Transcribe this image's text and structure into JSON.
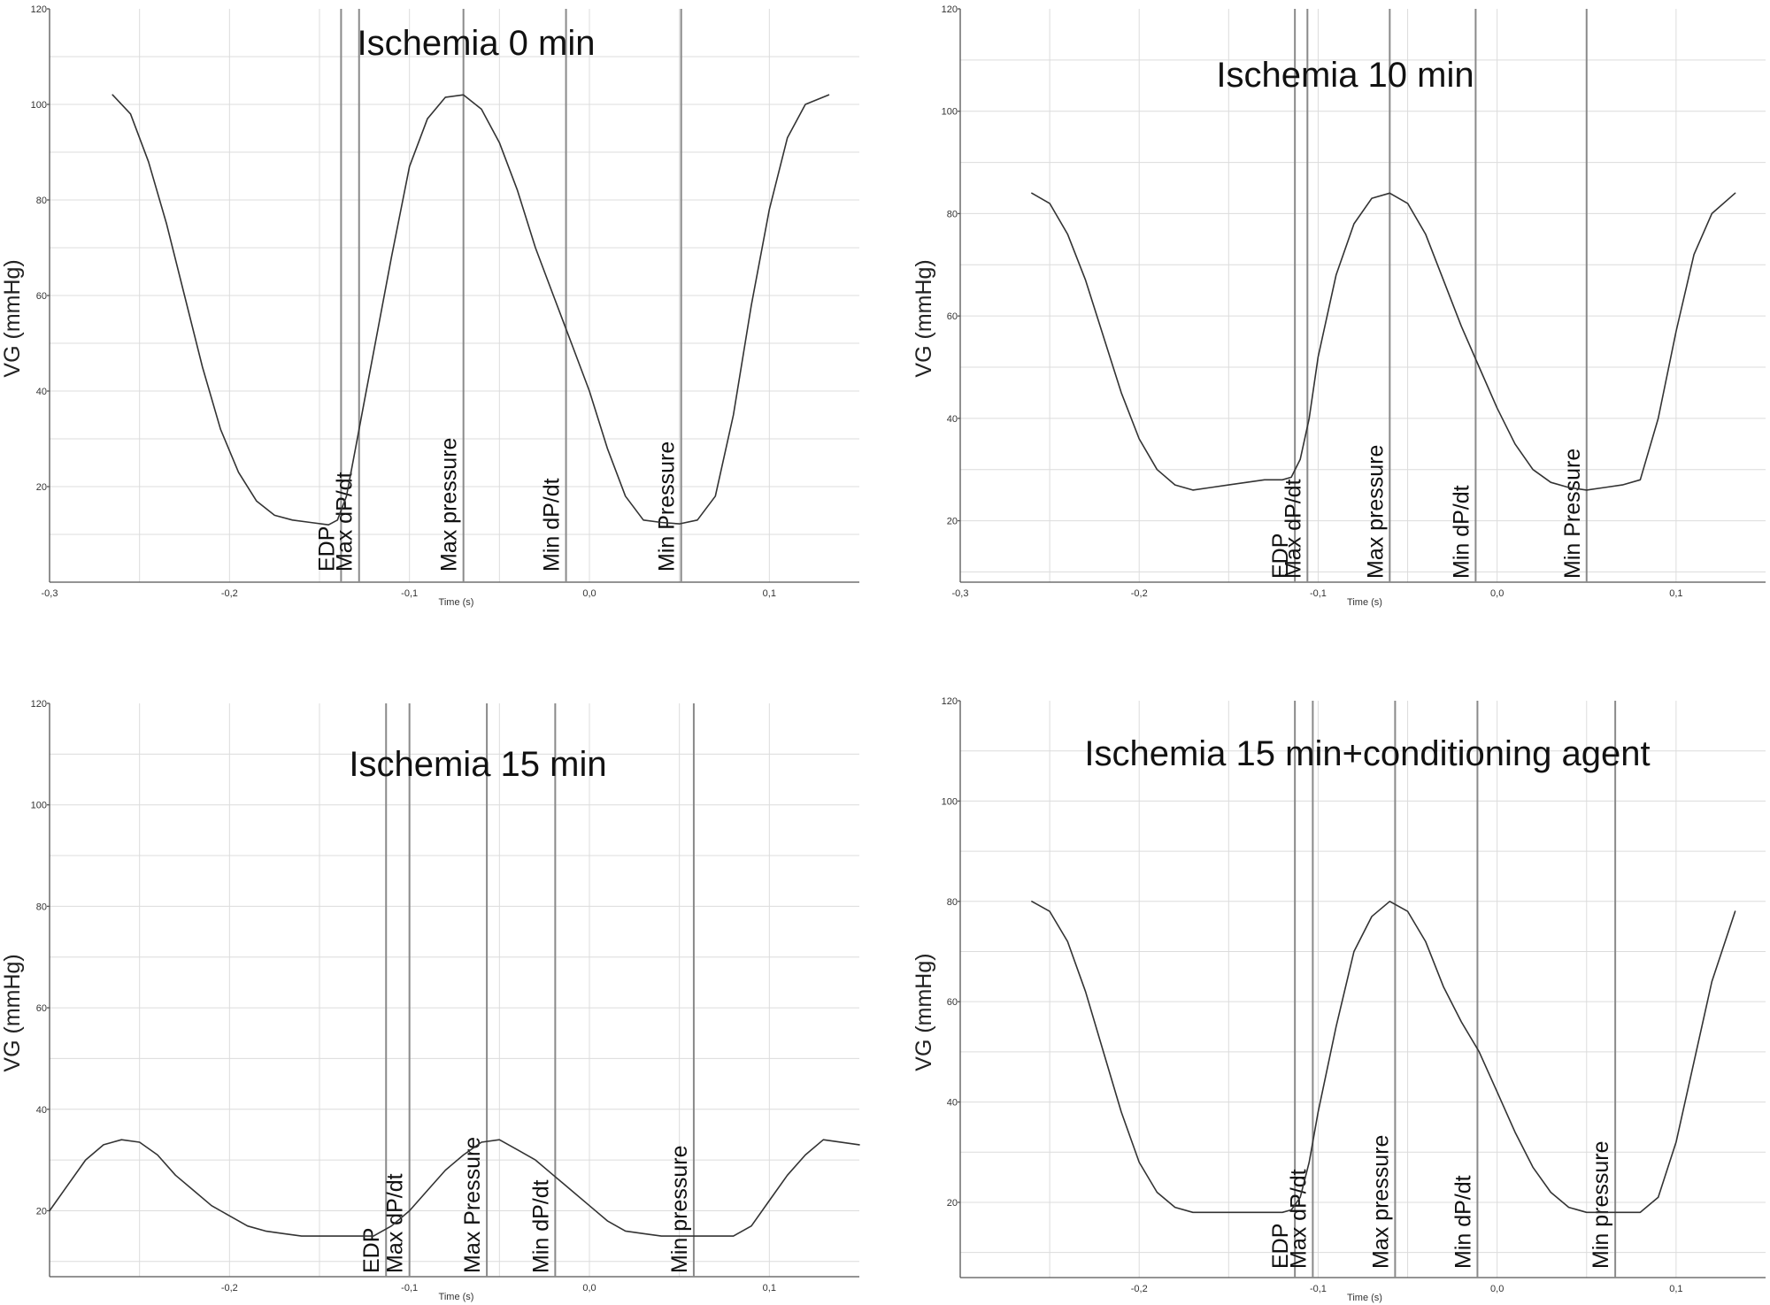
{
  "chart_data": [
    {
      "type": "line",
      "title": "Ischemia 0 min",
      "xlabel": "Time (s)",
      "ylabel": "VG (mmHg)",
      "xlim": [
        -0.3,
        0.15
      ],
      "ylim": [
        0,
        120
      ],
      "xticks": [
        -0.3,
        -0.2,
        -0.1,
        0.0,
        0.1
      ],
      "xtick_labels": [
        "-0,3",
        "-0,2",
        "-0,1",
        "0,0",
        "0,1"
      ],
      "yticks": [
        20,
        40,
        60,
        80,
        100,
        120
      ],
      "ytick_labels": [
        "20",
        "40",
        "60",
        "80",
        "100",
        "120"
      ],
      "grid": true,
      "series": [
        {
          "x": [
            -0.265,
            -0.255,
            -0.245,
            -0.235,
            -0.225,
            -0.215,
            -0.205,
            -0.195,
            -0.185,
            -0.175,
            -0.165,
            -0.155,
            -0.145,
            -0.14,
            -0.135,
            -0.13,
            -0.125,
            -0.12,
            -0.11,
            -0.1,
            -0.09,
            -0.08,
            -0.07,
            -0.06,
            -0.05,
            -0.04,
            -0.03,
            -0.02,
            -0.01,
            0.0,
            0.01,
            0.02,
            0.03,
            0.04,
            0.05,
            0.06,
            0.07,
            0.08,
            0.09,
            0.1,
            0.11,
            0.12,
            0.133
          ],
          "y": [
            102,
            98,
            88,
            75,
            60,
            45,
            32,
            23,
            17,
            14,
            13,
            12.5,
            12,
            13,
            18,
            28,
            38,
            48,
            68,
            87,
            97,
            101.5,
            102,
            99,
            92,
            82,
            70,
            60,
            50,
            40,
            28,
            18,
            13,
            12.5,
            12.2,
            13,
            18,
            35,
            58,
            78,
            93,
            100,
            102
          ]
        }
      ],
      "markers": [
        {
          "x": -0.138,
          "label": "EDP"
        },
        {
          "x": -0.128,
          "label": "Max dP/dt"
        },
        {
          "x": -0.07,
          "label": "Max pressure"
        },
        {
          "x": -0.013,
          "label": "Min dP/dt"
        },
        {
          "x": 0.051,
          "label": "Min Pressure"
        }
      ]
    },
    {
      "type": "line",
      "title": "Ischemia 10 min",
      "xlabel": "Time (s)",
      "ylabel": "VG (mmHg)",
      "xlim": [
        -0.3,
        0.15
      ],
      "ylim": [
        8,
        120
      ],
      "xticks": [
        -0.3,
        -0.2,
        -0.1,
        0.0,
        0.1
      ],
      "xtick_labels": [
        "-0,3",
        "-0,2",
        "-0,1",
        "0,0",
        "0,1"
      ],
      "yticks": [
        20,
        40,
        60,
        80,
        100,
        120
      ],
      "ytick_labels": [
        "20",
        "40",
        "60",
        "80",
        "100",
        "120"
      ],
      "grid": true,
      "series": [
        {
          "x": [
            -0.26,
            -0.25,
            -0.24,
            -0.23,
            -0.22,
            -0.21,
            -0.2,
            -0.19,
            -0.18,
            -0.17,
            -0.16,
            -0.15,
            -0.14,
            -0.13,
            -0.12,
            -0.115,
            -0.11,
            -0.105,
            -0.1,
            -0.09,
            -0.08,
            -0.07,
            -0.06,
            -0.05,
            -0.04,
            -0.03,
            -0.02,
            -0.01,
            0.0,
            0.01,
            0.02,
            0.03,
            0.04,
            0.05,
            0.06,
            0.07,
            0.08,
            0.09,
            0.1,
            0.11,
            0.12,
            0.133
          ],
          "y": [
            84,
            82,
            76,
            67,
            56,
            45,
            36,
            30,
            27,
            26,
            26.5,
            27,
            27.5,
            28,
            28,
            28.5,
            32,
            40,
            52,
            68,
            78,
            83,
            84,
            82,
            76,
            67,
            58,
            50,
            42,
            35,
            30,
            27.5,
            26.5,
            26,
            26.5,
            27,
            28,
            40,
            57,
            72,
            80,
            84
          ]
        }
      ],
      "markers": [
        {
          "x": -0.113,
          "label": "EDP"
        },
        {
          "x": -0.106,
          "label": "Max dP/dt"
        },
        {
          "x": -0.06,
          "label": "Max pressure"
        },
        {
          "x": -0.012,
          "label": "Min dP/dt"
        },
        {
          "x": 0.05,
          "label": "Min Pressure"
        }
      ]
    },
    {
      "type": "line",
      "title": "Ischemia 15 min",
      "xlabel": "Time (s)",
      "ylabel": "VG (mmHg)",
      "xlim": [
        -0.3,
        0.15
      ],
      "ylim": [
        7,
        120
      ],
      "xticks": [
        -0.2,
        -0.1,
        0.0,
        0.1
      ],
      "xtick_labels": [
        "-0,2",
        "-0,1",
        "0,0",
        "0,1"
      ],
      "yticks": [
        20,
        40,
        60,
        80,
        100,
        120
      ],
      "ytick_labels": [
        "20",
        "40",
        "60",
        "80",
        "100",
        "120"
      ],
      "grid": true,
      "series": [
        {
          "x": [
            -0.3,
            -0.29,
            -0.28,
            -0.27,
            -0.26,
            -0.25,
            -0.24,
            -0.23,
            -0.22,
            -0.21,
            -0.2,
            -0.19,
            -0.18,
            -0.17,
            -0.16,
            -0.15,
            -0.14,
            -0.13,
            -0.12,
            -0.11,
            -0.1,
            -0.09,
            -0.08,
            -0.07,
            -0.06,
            -0.05,
            -0.04,
            -0.03,
            -0.02,
            -0.01,
            0.0,
            0.01,
            0.02,
            0.03,
            0.04,
            0.05,
            0.06,
            0.07,
            0.08,
            0.09,
            0.1,
            0.11,
            0.12,
            0.13,
            0.15
          ],
          "y": [
            20,
            25,
            30,
            33,
            34,
            33.5,
            31,
            27,
            24,
            21,
            19,
            17,
            16,
            15.5,
            15,
            15,
            15,
            15,
            15,
            17,
            20,
            24,
            28,
            31,
            33.5,
            34,
            32,
            30,
            27,
            24,
            21,
            18,
            16,
            15.5,
            15,
            15,
            15,
            15,
            15,
            17,
            22,
            27,
            31,
            34,
            33
          ]
        }
      ],
      "markers": [
        {
          "x": -0.113,
          "label": "EDP"
        },
        {
          "x": -0.1,
          "label": "Max dP/dt"
        },
        {
          "x": -0.057,
          "label": "Max Pressure"
        },
        {
          "x": -0.019,
          "label": "Min dP/dt"
        },
        {
          "x": 0.058,
          "label": "Min pressure"
        }
      ]
    },
    {
      "type": "line",
      "title": "Ischemia 15 min+conditioning agent",
      "xlabel": "Time (s)",
      "ylabel": "VG (mmHg)",
      "xlim": [
        -0.3,
        0.15
      ],
      "ylim": [
        5,
        120
      ],
      "xticks": [
        -0.2,
        -0.1,
        0.0,
        0.1
      ],
      "xtick_labels": [
        "-0,2",
        "-0,1",
        "0,0",
        "0,1"
      ],
      "yticks": [
        20,
        40,
        60,
        80,
        100,
        120
      ],
      "ytick_labels": [
        "20",
        "40",
        "60",
        "80",
        "100",
        "120"
      ],
      "grid": true,
      "series": [
        {
          "x": [
            -0.26,
            -0.25,
            -0.24,
            -0.23,
            -0.22,
            -0.21,
            -0.2,
            -0.19,
            -0.18,
            -0.17,
            -0.16,
            -0.15,
            -0.14,
            -0.13,
            -0.12,
            -0.115,
            -0.11,
            -0.105,
            -0.1,
            -0.09,
            -0.08,
            -0.07,
            -0.06,
            -0.05,
            -0.04,
            -0.03,
            -0.02,
            -0.01,
            0.0,
            0.01,
            0.02,
            0.03,
            0.04,
            0.05,
            0.06,
            0.07,
            0.08,
            0.09,
            0.1,
            0.11,
            0.12,
            0.133
          ],
          "y": [
            80,
            78,
            72,
            62,
            50,
            38,
            28,
            22,
            19,
            18,
            18,
            18,
            18,
            18,
            18,
            18.5,
            21,
            28,
            38,
            55,
            70,
            77,
            80,
            78,
            72,
            63,
            56,
            50,
            42,
            34,
            27,
            22,
            19,
            18,
            18,
            18,
            18,
            21,
            32,
            48,
            64,
            78
          ]
        }
      ],
      "markers": [
        {
          "x": -0.113,
          "label": "EDP"
        },
        {
          "x": -0.103,
          "label": "Max dP/dt"
        },
        {
          "x": -0.057,
          "label": "Max pressure"
        },
        {
          "x": -0.011,
          "label": "Min dP/dt"
        },
        {
          "x": 0.066,
          "label": "Min pressure"
        }
      ]
    }
  ]
}
